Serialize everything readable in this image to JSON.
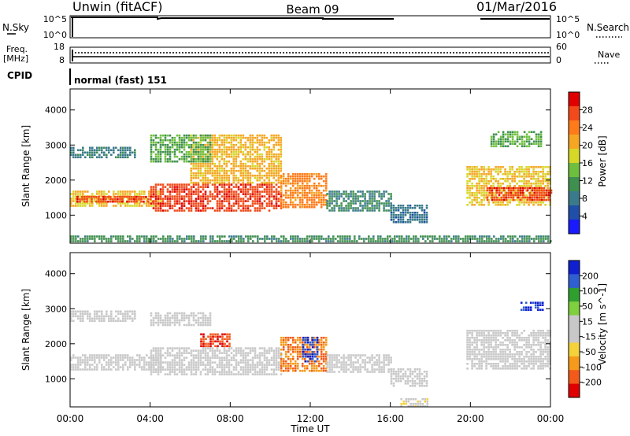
{
  "header": {
    "station": "Unwin (fitACF)",
    "beam": "Beam 09",
    "date": "01/Mar/2016"
  },
  "top_panels": {
    "nsky_label": "N.Sky",
    "nsky_ticks": [
      "10^5",
      "10^0"
    ],
    "nsearch_label": "N.Search",
    "nsearch_ticks": [
      "10^5",
      "10^0"
    ],
    "freq_label": "Freq.",
    "freq_unit": "[MHz]",
    "freq_ticks": [
      "18",
      "8"
    ],
    "nave_label": "Nave",
    "nave_ticks": [
      "60",
      "0"
    ],
    "cpid_label": "CPID",
    "cpid_value": "normal (fast) 151"
  },
  "colors": {
    "power_scale": [
      "#1a1aff",
      "#1f4fa8",
      "#3a7a8a",
      "#3f8f4f",
      "#6fbf3f",
      "#d7d728",
      "#f5a623",
      "#ff7b1a",
      "#f24a1a",
      "#e00000"
    ],
    "velocity_scale": [
      "#1020d0",
      "#2f5fd0",
      "#2f9f2f",
      "#7fcf3f",
      "#c8c8c8",
      "#c8c8c8",
      "#f5d23a",
      "#f59a1a",
      "#f25a1a",
      "#e00000"
    ]
  },
  "chart_data": [
    {
      "type": "heatmap",
      "name": "power",
      "ylabel": "Slant Range [km]",
      "yticks": [
        "1000",
        "2000",
        "3000",
        "4000"
      ],
      "ylim": [
        200,
        4600
      ],
      "xlim_hours": [
        0,
        24
      ],
      "colorbar_label": "Power [dB]",
      "colorbar_ticks": [
        "28",
        "24",
        "20",
        "16",
        "12",
        "8",
        "4"
      ],
      "colorbar_range": [
        0,
        30
      ],
      "regions": [
        {
          "t0": 0,
          "t1": 4.6,
          "r0": 1250,
          "r1": 1700,
          "v": 18
        },
        {
          "t0": 0.2,
          "t1": 4.2,
          "r0": 1380,
          "r1": 1550,
          "v": 26
        },
        {
          "t0": 0,
          "t1": 3.2,
          "r0": 2650,
          "r1": 2950,
          "v": 8
        },
        {
          "t0": 4,
          "t1": 10.5,
          "r0": 1150,
          "r1": 1900,
          "v": 26
        },
        {
          "t0": 6,
          "t1": 10.5,
          "r0": 1900,
          "r1": 3300,
          "v": 19
        },
        {
          "t0": 4,
          "t1": 7,
          "r0": 2550,
          "r1": 3300,
          "v": 12
        },
        {
          "t0": 10.5,
          "t1": 12.8,
          "r0": 1200,
          "r1": 2200,
          "v": 22
        },
        {
          "t0": 12.8,
          "t1": 16,
          "r0": 1100,
          "r1": 1700,
          "v": 9
        },
        {
          "t0": 16,
          "t1": 17.8,
          "r0": 800,
          "r1": 1300,
          "v": 7
        },
        {
          "t0": 0,
          "t1": 24,
          "r0": 220,
          "r1": 420,
          "v": 10
        },
        {
          "t0": 19.8,
          "t1": 24,
          "r0": 1300,
          "r1": 2400,
          "v": 18
        },
        {
          "t0": 20.8,
          "t1": 24,
          "r0": 1450,
          "r1": 1800,
          "v": 26
        },
        {
          "t0": 21,
          "t1": 23.5,
          "r0": 2950,
          "r1": 3400,
          "v": 12
        }
      ]
    },
    {
      "type": "heatmap",
      "name": "velocity",
      "ylabel": "Slant Range [km]",
      "yticks": [
        "1000",
        "2000",
        "3000",
        "4000"
      ],
      "ylim": [
        200,
        4600
      ],
      "xticks": [
        "00:00",
        "04:00",
        "08:00",
        "12:00",
        "16:00",
        "20:00",
        "00:00"
      ],
      "xlabel": "Time UT",
      "xlim_hours": [
        0,
        24
      ],
      "colorbar_label": "Velocity [m s^-1]",
      "colorbar_ticks": [
        "200",
        "100",
        "50",
        "15",
        "-15",
        "-50",
        "-100",
        "-200"
      ],
      "colorbar_range": [
        -250,
        250
      ],
      "regions": [
        {
          "t0": 0,
          "t1": 4.6,
          "r0": 1250,
          "r1": 1700,
          "v": 0
        },
        {
          "t0": 0,
          "t1": 3.2,
          "r0": 2650,
          "r1": 2950,
          "v": 0
        },
        {
          "t0": 4,
          "t1": 10.5,
          "r0": 1150,
          "r1": 1900,
          "v": 0
        },
        {
          "t0": 6.5,
          "t1": 8,
          "r0": 1900,
          "r1": 2300,
          "v": -200
        },
        {
          "t0": 4,
          "t1": 7,
          "r0": 2550,
          "r1": 2900,
          "v": 0
        },
        {
          "t0": 10.5,
          "t1": 12.8,
          "r0": 1200,
          "r1": 2200,
          "v": -150
        },
        {
          "t0": 11.6,
          "t1": 12.4,
          "r0": 1500,
          "r1": 2200,
          "v": 200
        },
        {
          "t0": 12.8,
          "t1": 16,
          "r0": 1200,
          "r1": 1700,
          "v": 0
        },
        {
          "t0": 16,
          "t1": 17.8,
          "r0": 800,
          "r1": 1300,
          "v": 0
        },
        {
          "t0": 16.5,
          "t1": 17.8,
          "r0": 220,
          "r1": 450,
          "v": -40
        },
        {
          "t0": 19.8,
          "t1": 24,
          "r0": 1300,
          "r1": 2400,
          "v": 0
        },
        {
          "t0": 22.5,
          "t1": 23.6,
          "r0": 2950,
          "r1": 3200,
          "v": 200
        }
      ]
    }
  ]
}
